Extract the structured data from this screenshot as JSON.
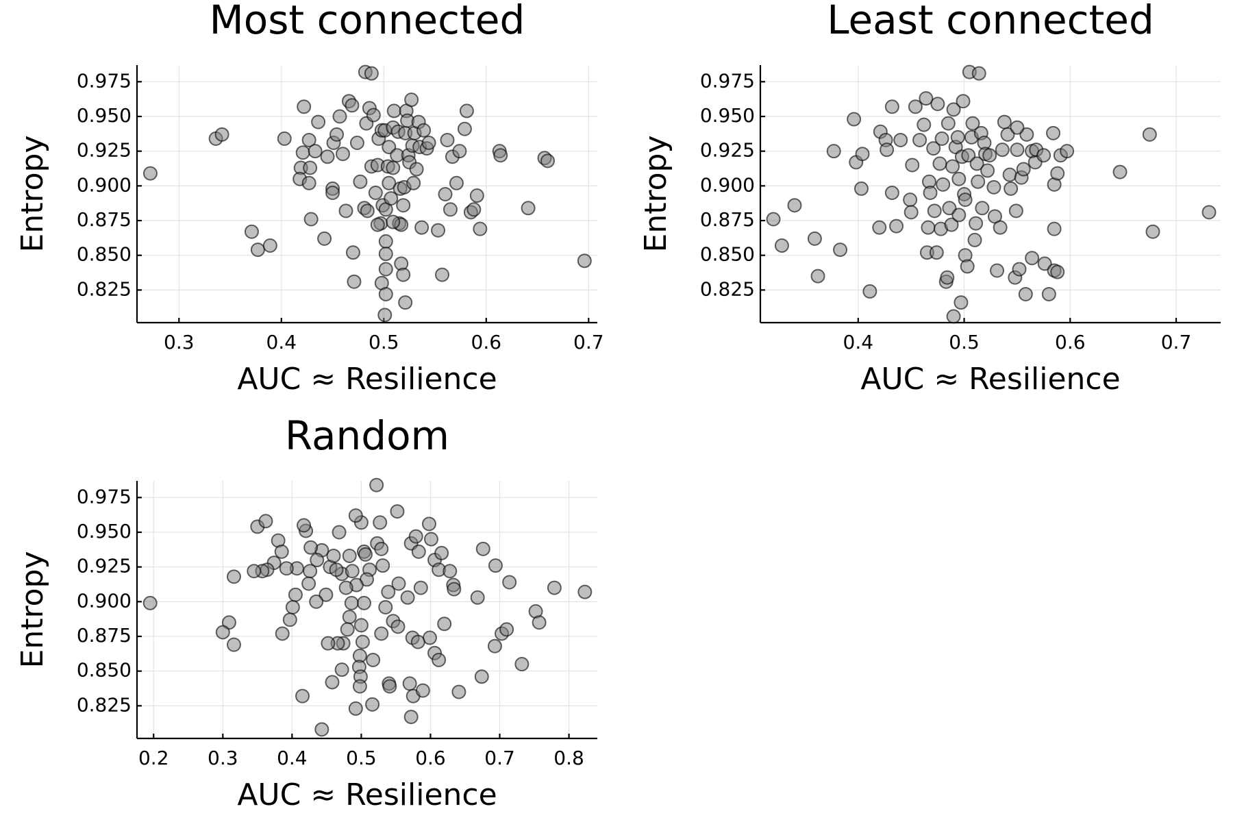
{
  "chart_data": [
    {
      "type": "scatter",
      "title": "Most connected",
      "xlabel": "AUC ≈ Resilience",
      "ylabel": "Entropy",
      "color": "#808080",
      "grid": true,
      "xlim": [
        0.259,
        0.7085
      ],
      "ylim": [
        0.8015,
        0.987
      ],
      "xticks": [
        0.3,
        0.4,
        0.5,
        0.6,
        0.7
      ],
      "yticks": [
        0.825,
        {
          "value": 0.85,
          "label": "0.850"
        },
        0.875,
        {
          "value": 0.9,
          "label": "0.900"
        },
        0.925,
        {
          "value": 0.95,
          "label": "0.950"
        },
        0.975
      ],
      "x": [
        0.272,
        0.336,
        0.342,
        0.371,
        0.377,
        0.389,
        0.403,
        0.422,
        0.421,
        0.419,
        0.418,
        0.427,
        0.429,
        0.427,
        0.428,
        0.433,
        0.436,
        0.442,
        0.445,
        0.45,
        0.45,
        0.451,
        0.454,
        0.457,
        0.46,
        0.463,
        0.466,
        0.469,
        0.47,
        0.471,
        0.474,
        0.477,
        0.481,
        0.482,
        0.483,
        0.486,
        0.488,
        0.488,
        0.49,
        0.492,
        0.494,
        0.495,
        0.497,
        0.498,
        0.498,
        0.499,
        0.501,
        0.502,
        0.502,
        0.502,
        0.502,
        0.502,
        0.501,
        0.504,
        0.505,
        0.505,
        0.507,
        0.509,
        0.509,
        0.51,
        0.513,
        0.514,
        0.515,
        0.516,
        0.517,
        0.517,
        0.519,
        0.519,
        0.52,
        0.521,
        0.522,
        0.523,
        0.524,
        0.525,
        0.527,
        0.528,
        0.529,
        0.53,
        0.532,
        0.534,
        0.535,
        0.537,
        0.539,
        0.542,
        0.544,
        0.553,
        0.557,
        0.56,
        0.562,
        0.565,
        0.567,
        0.571,
        0.574,
        0.579,
        0.581,
        0.585,
        0.588,
        0.591,
        0.594,
        0.613,
        0.614,
        0.641,
        0.657,
        0.66,
        0.696,
        0.484,
        0.494,
        0.509,
        0.521
      ],
      "values": [
        0.909,
        0.934,
        0.937,
        0.867,
        0.854,
        0.857,
        0.934,
        0.957,
        0.924,
        0.913,
        0.905,
        0.933,
        0.876,
        0.902,
        0.913,
        0.925,
        0.946,
        0.862,
        0.921,
        0.898,
        0.895,
        0.931,
        0.937,
        0.95,
        0.923,
        0.882,
        0.961,
        0.958,
        0.852,
        0.831,
        0.931,
        0.903,
        0.884,
        0.982,
        0.945,
        0.956,
        0.981,
        0.914,
        0.951,
        0.895,
        0.915,
        0.934,
        0.873,
        0.94,
        0.83,
        0.886,
        0.94,
        0.883,
        0.86,
        0.84,
        0.851,
        0.822,
        0.807,
        0.914,
        0.928,
        0.902,
        0.891,
        0.942,
        0.913,
        0.954,
        0.922,
        0.939,
        0.873,
        0.898,
        0.872,
        0.844,
        0.836,
        0.886,
        0.899,
        0.938,
        0.954,
        0.947,
        0.922,
        0.917,
        0.962,
        0.929,
        0.902,
        0.938,
        0.912,
        0.946,
        0.928,
        0.87,
        0.94,
        0.927,
        0.931,
        0.868,
        0.836,
        0.894,
        0.933,
        0.883,
        0.921,
        0.902,
        0.925,
        0.941,
        0.954,
        0.881,
        0.883,
        0.893,
        0.869,
        0.925,
        0.922,
        0.884,
        0.92,
        0.918,
        0.846,
        0.882,
        0.872,
        0.874,
        0.816
      ]
    },
    {
      "type": "scatter",
      "title": "Least connected",
      "xlabel": "AUC ≈ Resilience",
      "ylabel": "Entropy",
      "color": "#808080",
      "grid": true,
      "xlim": [
        0.3077,
        0.742
      ],
      "ylim": [
        0.8015,
        0.987
      ],
      "xticks": [
        0.4,
        0.5,
        0.6,
        0.7
      ],
      "yticks": [
        0.825,
        {
          "value": 0.85,
          "label": "0.850"
        },
        0.875,
        {
          "value": 0.9,
          "label": "0.900"
        },
        0.925,
        {
          "value": 0.95,
          "label": "0.950"
        },
        0.975
      ],
      "x": [
        0.32,
        0.328,
        0.34,
        0.359,
        0.362,
        0.383,
        0.396,
        0.398,
        0.404,
        0.403,
        0.377,
        0.411,
        0.42,
        0.421,
        0.426,
        0.427,
        0.432,
        0.432,
        0.436,
        0.44,
        0.449,
        0.45,
        0.451,
        0.454,
        0.458,
        0.462,
        0.464,
        0.465,
        0.466,
        0.467,
        0.468,
        0.471,
        0.472,
        0.474,
        0.475,
        0.477,
        0.479,
        0.478,
        0.48,
        0.483,
        0.484,
        0.485,
        0.486,
        0.488,
        0.489,
        0.49,
        0.49,
        0.492,
        0.494,
        0.495,
        0.495,
        0.497,
        0.498,
        0.499,
        0.5,
        0.501,
        0.501,
        0.503,
        0.504,
        0.505,
        0.507,
        0.508,
        0.51,
        0.511,
        0.512,
        0.513,
        0.514,
        0.516,
        0.517,
        0.519,
        0.52,
        0.522,
        0.524,
        0.528,
        0.529,
        0.531,
        0.534,
        0.536,
        0.538,
        0.541,
        0.543,
        0.544,
        0.548,
        0.549,
        0.55,
        0.552,
        0.554,
        0.556,
        0.559,
        0.564,
        0.564,
        0.558,
        0.567,
        0.568,
        0.575,
        0.576,
        0.58,
        0.585,
        0.585,
        0.588,
        0.591,
        0.597,
        0.584,
        0.585,
        0.588,
        0.647,
        0.675,
        0.678,
        0.731,
        0.55
      ],
      "values": [
        0.876,
        0.857,
        0.886,
        0.862,
        0.835,
        0.854,
        0.948,
        0.917,
        0.923,
        0.898,
        0.925,
        0.824,
        0.87,
        0.939,
        0.933,
        0.926,
        0.957,
        0.895,
        0.871,
        0.933,
        0.89,
        0.881,
        0.915,
        0.957,
        0.933,
        0.944,
        0.963,
        0.852,
        0.87,
        0.903,
        0.895,
        0.927,
        0.882,
        0.852,
        0.959,
        0.916,
        0.934,
        0.869,
        0.901,
        0.831,
        0.834,
        0.945,
        0.884,
        0.872,
        0.914,
        0.955,
        0.806,
        0.928,
        0.935,
        0.905,
        0.879,
        0.816,
        0.921,
        0.961,
        0.894,
        0.89,
        0.85,
        0.842,
        0.922,
        0.982,
        0.935,
        0.945,
        0.861,
        0.873,
        0.916,
        0.903,
        0.981,
        0.938,
        0.884,
        0.931,
        0.923,
        0.911,
        0.922,
        0.899,
        0.878,
        0.839,
        0.87,
        0.926,
        0.946,
        0.937,
        0.908,
        0.898,
        0.834,
        0.882,
        0.926,
        0.84,
        0.906,
        0.912,
        0.937,
        0.848,
        0.925,
        0.822,
        0.917,
        0.926,
        0.922,
        0.844,
        0.822,
        0.839,
        0.901,
        0.909,
        0.922,
        0.925,
        0.938,
        0.869,
        0.838,
        0.91,
        0.937,
        0.867,
        0.881,
        0.942
      ]
    },
    {
      "type": "scatter",
      "title": "Random",
      "xlabel": "AUC ≈ Resilience",
      "ylabel": "Entropy",
      "color": "#808080",
      "grid": true,
      "xlim": [
        0.176,
        0.841
      ],
      "ylim": [
        0.8015,
        0.987
      ],
      "xticks": [
        0.2,
        0.3,
        0.4,
        0.5,
        0.6,
        0.7,
        0.8
      ],
      "yticks": [
        0.825,
        {
          "value": 0.85,
          "label": "0.850"
        },
        0.875,
        {
          "value": 0.9,
          "label": "0.900"
        },
        0.925,
        {
          "value": 0.95,
          "label": "0.950"
        },
        0.975
      ],
      "x": [
        0.598,
        0.601,
        0.606,
        0.616,
        0.612,
        0.628,
        0.633,
        0.634,
        0.62,
        0.599,
        0.606,
        0.612,
        0.641,
        0.676,
        0.668,
        0.674,
        0.693,
        0.694,
        0.703,
        0.71,
        0.714,
        0.732,
        0.752,
        0.757,
        0.779,
        0.823,
        0.572,
        0.579,
        0.583,
        0.586,
        0.567,
        0.574,
        0.582,
        0.57,
        0.575,
        0.572,
        0.589,
        0.552,
        0.554,
        0.546,
        0.553,
        0.539,
        0.54,
        0.541,
        0.522,
        0.527,
        0.523,
        0.529,
        0.531,
        0.535,
        0.529,
        0.517,
        0.516,
        0.512,
        0.508,
        0.504,
        0.5,
        0.504,
        0.5,
        0.502,
        0.498,
        0.497,
        0.499,
        0.498,
        0.492,
        0.492,
        0.493,
        0.486,
        0.483,
        0.48,
        0.474,
        0.472,
        0.466,
        0.458,
        0.452,
        0.443,
        0.449,
        0.455,
        0.46,
        0.468,
        0.472,
        0.483,
        0.487,
        0.478,
        0.443,
        0.436,
        0.427,
        0.42,
        0.417,
        0.426,
        0.424,
        0.435,
        0.407,
        0.405,
        0.401,
        0.397,
        0.415,
        0.386,
        0.392,
        0.38,
        0.385,
        0.374,
        0.364,
        0.357,
        0.345,
        0.35,
        0.362,
        0.316,
        0.309,
        0.3,
        0.316,
        0.195,
        0.464,
        0.506
      ],
      "values": [
        0.956,
        0.945,
        0.93,
        0.935,
        0.923,
        0.922,
        0.912,
        0.909,
        0.884,
        0.874,
        0.863,
        0.858,
        0.835,
        0.938,
        0.903,
        0.846,
        0.868,
        0.926,
        0.877,
        0.88,
        0.914,
        0.855,
        0.893,
        0.885,
        0.91,
        0.907,
        0.942,
        0.947,
        0.936,
        0.91,
        0.903,
        0.874,
        0.871,
        0.841,
        0.832,
        0.817,
        0.836,
        0.965,
        0.913,
        0.886,
        0.882,
        0.907,
        0.841,
        0.839,
        0.984,
        0.957,
        0.942,
        0.938,
        0.926,
        0.896,
        0.877,
        0.858,
        0.826,
        0.923,
        0.916,
        0.936,
        0.957,
        0.899,
        0.883,
        0.871,
        0.861,
        0.853,
        0.846,
        0.839,
        0.823,
        0.962,
        0.912,
        0.899,
        0.889,
        0.88,
        0.87,
        0.851,
        0.87,
        0.842,
        0.87,
        0.808,
        0.905,
        0.925,
        0.933,
        0.95,
        0.92,
        0.933,
        0.922,
        0.91,
        0.937,
        0.93,
        0.939,
        0.951,
        0.955,
        0.922,
        0.913,
        0.9,
        0.924,
        0.905,
        0.896,
        0.887,
        0.832,
        0.877,
        0.924,
        0.944,
        0.936,
        0.928,
        0.923,
        0.922,
        0.922,
        0.954,
        0.958,
        0.918,
        0.885,
        0.878,
        0.869,
        0.899,
        0.923,
        0.934
      ]
    }
  ]
}
